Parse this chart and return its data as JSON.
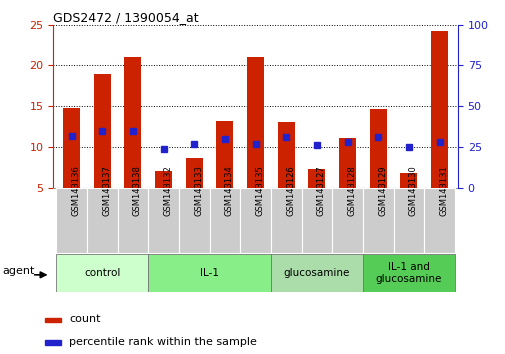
{
  "title": "GDS2472 / 1390054_at",
  "samples": [
    "GSM143136",
    "GSM143137",
    "GSM143138",
    "GSM143132",
    "GSM143133",
    "GSM143134",
    "GSM143135",
    "GSM143126",
    "GSM143127",
    "GSM143128",
    "GSM143129",
    "GSM143130",
    "GSM143131"
  ],
  "count_values": [
    14.8,
    19.0,
    21.0,
    7.1,
    8.6,
    13.2,
    21.0,
    13.0,
    7.3,
    11.1,
    14.7,
    6.8,
    24.2
  ],
  "percentile_values_pct": [
    32,
    35,
    35,
    24,
    27,
    30,
    27,
    31,
    26,
    28,
    31,
    25,
    28
  ],
  "ylim_left": [
    5,
    25
  ],
  "ylim_right": [
    0,
    100
  ],
  "yticks_left": [
    5,
    10,
    15,
    20,
    25
  ],
  "yticks_right": [
    0,
    25,
    50,
    75,
    100
  ],
  "groups": [
    {
      "label": "control",
      "indices": [
        0,
        1,
        2
      ],
      "color": "#ccffcc"
    },
    {
      "label": "IL-1",
      "indices": [
        3,
        4,
        5,
        6
      ],
      "color": "#88ee88"
    },
    {
      "label": "glucosamine",
      "indices": [
        7,
        8,
        9
      ],
      "color": "#aaddaa"
    },
    {
      "label": "IL-1 and\nglucosamine",
      "indices": [
        10,
        11,
        12
      ],
      "color": "#55cc55"
    }
  ],
  "bar_color": "#cc2200",
  "percentile_color": "#2222cc",
  "bar_width": 0.55,
  "tick_bg_color": "#cccccc",
  "grid_color": "#000000",
  "agent_label": "agent",
  "legend_count_label": "count",
  "legend_percentile_label": "percentile rank within the sample",
  "left_spine_color": "#cc2200",
  "right_spine_color": "#2222cc"
}
